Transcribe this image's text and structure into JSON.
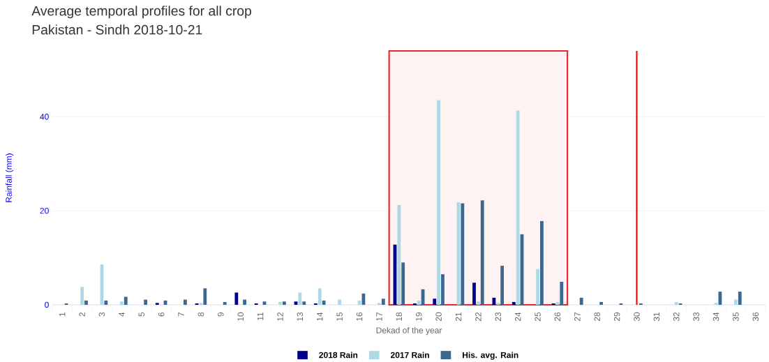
{
  "chart_data": {
    "type": "bar",
    "title": "Average temporal profiles for all crop",
    "subtitle": "Pakistan - Sindh 2018-10-21",
    "xlabel": "Dekad of the year",
    "ylabel": "Rainfall (mm)",
    "x": [
      1,
      2,
      3,
      4,
      5,
      6,
      7,
      8,
      9,
      10,
      11,
      12,
      13,
      14,
      15,
      16,
      17,
      18,
      19,
      20,
      21,
      22,
      23,
      24,
      25,
      26,
      27,
      28,
      29,
      30,
      31,
      32,
      33,
      34,
      35,
      36
    ],
    "series": [
      {
        "name": "2018 Rain",
        "color": "#00008b",
        "values": [
          0,
          0,
          0,
          0,
          0,
          0.4,
          0,
          0.3,
          0,
          2.6,
          0.3,
          0,
          0.7,
          0.3,
          0,
          0,
          0,
          12.8,
          0.3,
          1.3,
          0,
          4.7,
          1.5,
          0.6,
          0,
          0.3,
          0,
          0,
          0,
          0,
          0,
          0,
          0,
          0,
          0,
          0
        ]
      },
      {
        "name": "2017 Rain",
        "color": "#add8e6",
        "values": [
          0,
          3.8,
          8.6,
          0.7,
          0,
          0,
          0,
          0.4,
          0,
          0,
          0,
          0.6,
          2.6,
          3.5,
          1.1,
          0.9,
          0.4,
          21.2,
          0.9,
          43.5,
          21.8,
          0.7,
          0.4,
          41.3,
          7.6,
          0.6,
          0,
          0,
          0,
          0,
          0,
          0.6,
          0,
          0.4,
          1.1,
          0
        ]
      },
      {
        "name": "His. avg. Rain",
        "color": "#3a6890",
        "values": [
          0.3,
          0.9,
          0.9,
          1.7,
          1.1,
          0.9,
          1.1,
          3.5,
          0.6,
          1.1,
          0.7,
          0.7,
          0.7,
          0.9,
          0,
          2.4,
          1.3,
          9.0,
          3.3,
          6.5,
          21.6,
          22.2,
          8.3,
          15.0,
          17.8,
          4.9,
          1.5,
          0.6,
          0.3,
          0.3,
          0,
          0.3,
          0,
          2.8,
          2.8,
          0
        ]
      }
    ],
    "xlim": [
      0.5,
      36.5
    ],
    "xticks": [
      1,
      2,
      3,
      4,
      5,
      6,
      7,
      8,
      9,
      10,
      11,
      12,
      13,
      14,
      15,
      16,
      17,
      18,
      19,
      20,
      21,
      22,
      23,
      24,
      25,
      26,
      27,
      28,
      29,
      30,
      31,
      32,
      33,
      34,
      35,
      36
    ],
    "ylim": [
      0,
      54
    ],
    "yticks": [
      0,
      20,
      40
    ],
    "ref_lines": [
      {
        "axis": "x",
        "value": 30,
        "color": "#ff0000"
      }
    ],
    "bands": [
      {
        "axis": "x",
        "from": 17.5,
        "to": 26.5,
        "color": "#e8262b"
      }
    ],
    "grid": "y",
    "legend": "bottom"
  }
}
